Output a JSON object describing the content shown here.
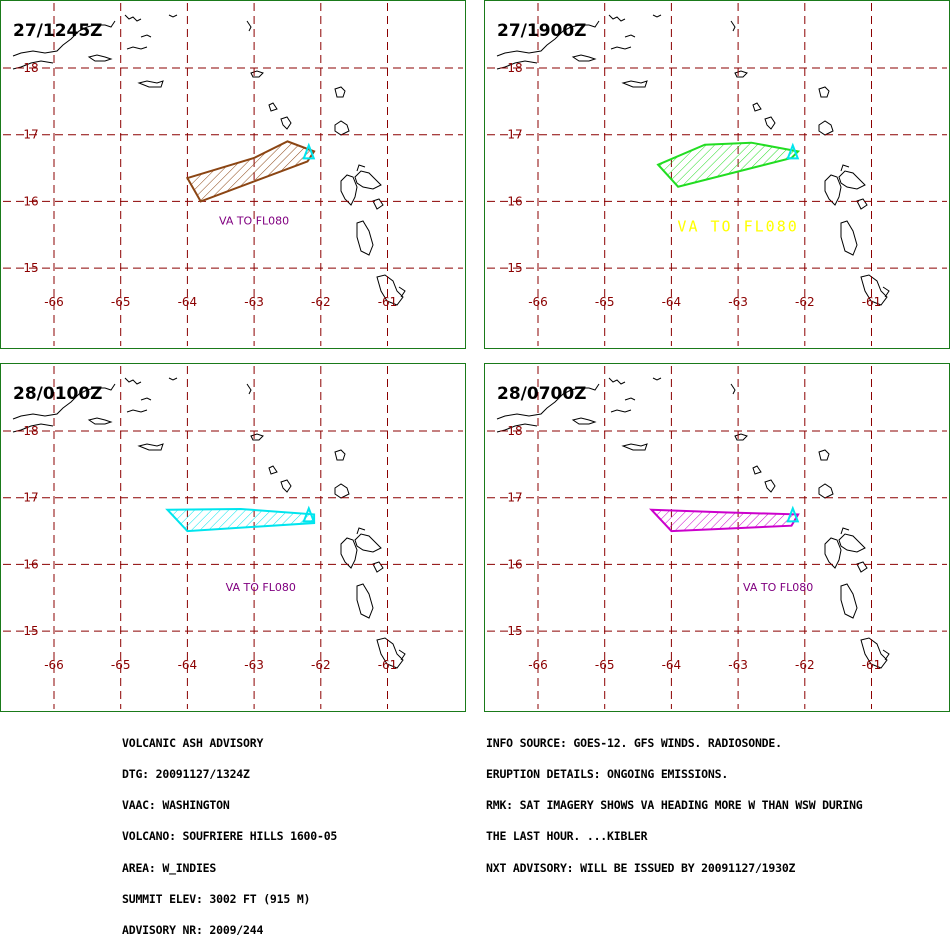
{
  "colors": {
    "frame": "#1a7a1a",
    "grid": "#8b0000",
    "axis_label": "#8b0000",
    "coast": "#000000",
    "volcano": "#00e5ee"
  },
  "axes": {
    "lon_ticks": [
      -66,
      -65,
      -64,
      -63,
      -62,
      -61
    ],
    "lon_labels": [
      "-66",
      "-65",
      "-64",
      "-63",
      "-62",
      "-61"
    ],
    "lat_ticks": [
      15,
      16,
      17,
      18
    ],
    "lat_labels": [
      "15",
      "16",
      "17",
      "18"
    ]
  },
  "volcano": {
    "lon": -62.18,
    "lat": 16.72
  },
  "panels": [
    {
      "time": "27/1245Z",
      "plume_color": "#8b4513",
      "plume": [
        [
          -64.0,
          16.35
        ],
        [
          -63.0,
          16.65
        ],
        [
          -62.5,
          16.9
        ],
        [
          -62.1,
          16.75
        ],
        [
          -62.2,
          16.6
        ],
        [
          -63.8,
          16.0
        ]
      ],
      "label": "VA TO FL080",
      "label_color": "#800080",
      "label_style": "small",
      "label_pos": {
        "lon": -63.0,
        "lat": 15.65
      }
    },
    {
      "time": "27/1900Z",
      "plume_color": "#22dd22",
      "plume": [
        [
          -64.2,
          16.55
        ],
        [
          -63.5,
          16.85
        ],
        [
          -62.8,
          16.88
        ],
        [
          -62.1,
          16.75
        ],
        [
          -62.2,
          16.65
        ],
        [
          -63.9,
          16.22
        ]
      ],
      "label": "VA TO FL080",
      "label_color": "#ffff00",
      "label_style": "large",
      "label_pos": {
        "lon": -63.0,
        "lat": 15.55
      }
    },
    {
      "time": "28/0100Z",
      "plume_color": "#00e5ee",
      "plume": [
        [
          -64.3,
          16.82
        ],
        [
          -63.2,
          16.83
        ],
        [
          -62.1,
          16.75
        ],
        [
          -62.1,
          16.62
        ],
        [
          -64.0,
          16.5
        ]
      ],
      "label": "VA TO FL080",
      "label_color": "#800080",
      "label_style": "small",
      "label_pos": {
        "lon": -62.9,
        "lat": 15.6
      }
    },
    {
      "time": "28/0700Z",
      "plume_color": "#cc00cc",
      "plume": [
        [
          -64.3,
          16.82
        ],
        [
          -63.2,
          16.78
        ],
        [
          -62.1,
          16.75
        ],
        [
          -62.2,
          16.58
        ],
        [
          -64.0,
          16.5
        ]
      ],
      "label": "VA TO FL080",
      "label_color": "#800080",
      "label_style": "small",
      "label_pos": {
        "lon": -62.4,
        "lat": 15.6
      }
    }
  ],
  "info_left": [
    "VOLCANIC ASH ADVISORY",
    "DTG: 20091127/1324Z",
    "VAAC: WASHINGTON",
    "VOLCANO: SOUFRIERE HILLS 1600-05",
    "AREA: W_INDIES",
    "SUMMIT ELEV: 3002 FT (915 M)",
    "ADVISORY NR: 2009/244"
  ],
  "info_right": [
    "INFO SOURCE: GOES-12. GFS WINDS. RADIOSONDE.",
    "ERUPTION DETAILS: ONGOING EMISSIONS.",
    "RMK: SAT IMAGERY SHOWS VA HEADING MORE W THAN WSW DURING",
    "THE LAST HOUR. ...KIBLER",
    "NXT ADVISORY: WILL BE ISSUED BY 20091127/1930Z"
  ]
}
